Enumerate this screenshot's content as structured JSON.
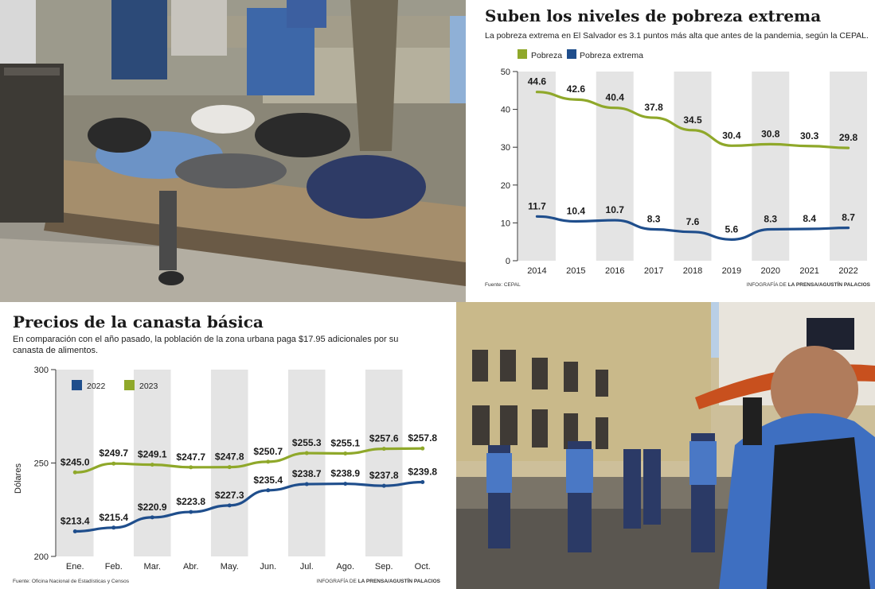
{
  "chart_data": [
    {
      "type": "line",
      "title": "Suben los niveles de pobreza extrema",
      "subtitle": "La pobreza extrema en El Salvador es 3.1 puntos más alta que antes de la pandemia, según la CEPAL.",
      "categories": [
        "2014",
        "2015",
        "2016",
        "2017",
        "2018",
        "2019",
        "2020",
        "2021",
        "2022"
      ],
      "series": [
        {
          "name": "Pobreza",
          "color": "#8fa82a",
          "values": [
            44.6,
            42.6,
            40.4,
            37.8,
            34.5,
            30.4,
            30.8,
            30.3,
            29.8
          ],
          "labels": [
            "44.6",
            "42.6",
            "40.4",
            "37.8",
            "34.5",
            "30.4",
            "30.8",
            "30.3",
            "29.8"
          ]
        },
        {
          "name": "Pobreza extrema",
          "color": "#1f4e8c",
          "values": [
            11.7,
            10.4,
            10.7,
            8.3,
            7.6,
            5.6,
            8.3,
            8.4,
            8.7
          ],
          "labels": [
            "11.7",
            "10.4",
            "10.7",
            "8.3",
            "7.6",
            "5.6",
            "8.3",
            "8.4",
            "8.7"
          ]
        }
      ],
      "ylim": [
        0,
        50
      ],
      "yticks": [
        "0",
        "10",
        "20",
        "30",
        "40",
        "50"
      ],
      "legend": "top-left",
      "source": "Fuente: CEPAL",
      "credit_prefix": "INFOGRAFÍA DE ",
      "credit_name": "LA PRENSA/AGUSTÍN PALACIOS"
    },
    {
      "type": "line",
      "title": "Precios de la canasta básica",
      "subtitle_lines": [
        "En comparación con el año pasado, la población de la zona urbana paga $17.95 adicionales por su",
        "canasta de alimentos."
      ],
      "categories": [
        "Ene.",
        "Feb.",
        "Mar.",
        "Abr.",
        "May.",
        "Jun.",
        "Jul.",
        "Ago.",
        "Sep.",
        "Oct."
      ],
      "series": [
        {
          "name": "2022",
          "color": "#1f4e8c",
          "values": [
            213.4,
            215.4,
            220.9,
            223.8,
            227.3,
            235.4,
            238.7,
            238.9,
            237.8,
            239.8
          ],
          "labels": [
            "$213.4",
            "$215.4",
            "$220.9",
            "$223.8",
            "$227.3",
            "$235.4",
            "$238.7",
            "$238.9",
            "$237.8",
            "$239.8"
          ]
        },
        {
          "name": "2023",
          "color": "#8fa82a",
          "values": [
            245.0,
            249.7,
            249.1,
            247.7,
            247.8,
            250.7,
            255.3,
            255.1,
            257.6,
            257.8
          ],
          "labels": [
            "$245.0",
            "$249.7",
            "$249.1",
            "$247.7",
            "$247.8",
            "$250.7",
            "$255.3",
            "$255.1",
            "$257.6",
            "$257.8"
          ]
        }
      ],
      "ylim": [
        200,
        300
      ],
      "yticks": [
        "200",
        "250",
        "300"
      ],
      "ylabel": "Dólares",
      "legend": "top-left",
      "source": "Fuente: Oficina Nacional de Estadísticas y Censos",
      "credit_prefix": "INFOGRAFÍA DE ",
      "credit_name": "LA PRENSA/AGUSTÍN PALACIOS"
    }
  ]
}
